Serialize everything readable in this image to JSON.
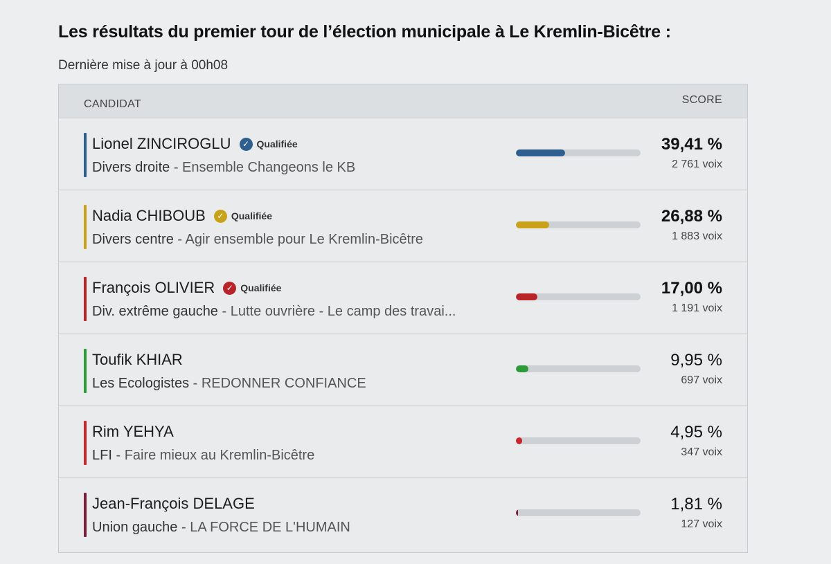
{
  "title": "Les résultats du premier tour de l’élection municipale à Le Kremlin-Bicêtre :",
  "updated": "Dernière mise à jour à 00h08",
  "table": {
    "col_candidate": "CANDIDAT",
    "col_score": "SCORE"
  },
  "candidates": [
    {
      "name": "Lionel ZINCIROGLU",
      "qualified_label": "Qualifiée",
      "qualified": true,
      "nuance": "Divers droite",
      "list_name": "Ensemble Changeons le KB",
      "percent": "39,41 %",
      "percent_value": 39.41,
      "votes": "2 761 voix",
      "color": "#2f5f8f"
    },
    {
      "name": "Nadia CHIBOUB",
      "qualified_label": "Qualifiée",
      "qualified": true,
      "nuance": "Divers centre",
      "list_name": "Agir ensemble pour Le Kremlin-Bicêtre",
      "percent": "26,88 %",
      "percent_value": 26.88,
      "votes": "1 883 voix",
      "color": "#c9a21c"
    },
    {
      "name": "François OLIVIER",
      "qualified_label": "Qualifiée",
      "qualified": true,
      "nuance": "Div. extrême gauche",
      "list_name": "Lutte ouvrière - Le camp des travai...",
      "percent": "17,00 %",
      "percent_value": 17.0,
      "votes": "1 191 voix",
      "color": "#b8242a"
    },
    {
      "name": "Toufik KHIAR",
      "qualified_label": "",
      "qualified": false,
      "nuance": "Les Ecologistes",
      "list_name": "REDONNER CONFIANCE",
      "percent": "9,95 %",
      "percent_value": 9.95,
      "votes": "697 voix",
      "color": "#2e9a3a"
    },
    {
      "name": "Rim YEHYA",
      "qualified_label": "",
      "qualified": false,
      "nuance": "LFI",
      "list_name": "Faire mieux au Kremlin-Bicêtre",
      "percent": "4,95 %",
      "percent_value": 4.95,
      "votes": "347 voix",
      "color": "#c8252c"
    },
    {
      "name": "Jean-François DELAGE",
      "qualified_label": "",
      "qualified": false,
      "nuance": "Union gauche",
      "list_name": "LA FORCE DE L'HUMAIN",
      "percent": "1,81 %",
      "percent_value": 1.81,
      "votes": "127 voix",
      "color": "#7a1f3a"
    }
  ]
}
